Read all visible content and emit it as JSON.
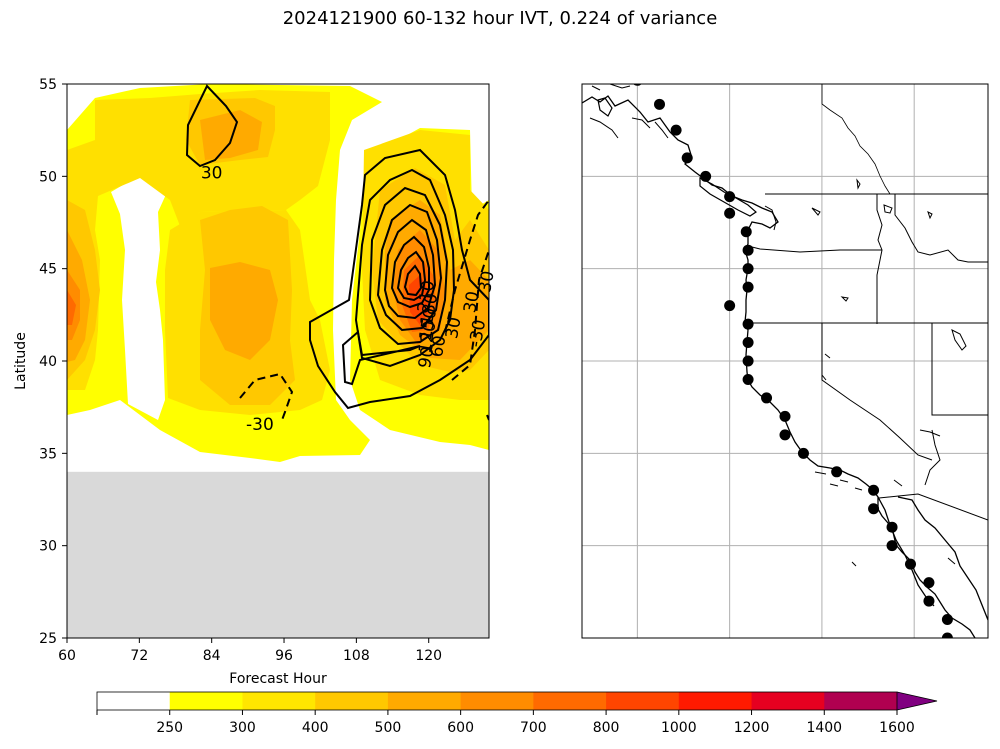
{
  "title": "2024121900 60-132 hour IVT, 0.224 of variance",
  "chart_data": [
    {
      "type": "heatmap",
      "name": "ivt-hovmoller",
      "xlabel": "Forecast Hour",
      "ylabel": "Latitude",
      "xlim": [
        60,
        130
      ],
      "ylim": [
        25,
        55
      ],
      "xticks": [
        "60",
        "72",
        "84",
        "96",
        "108",
        "120"
      ],
      "yticks": [
        "25",
        "30",
        "35",
        "40",
        "45",
        "50",
        "55"
      ],
      "missing_region": {
        "lat_below": 34,
        "color": "#d9d9d9"
      },
      "contour_labels": [
        {
          "text": "30",
          "x": 84,
          "y": 50.2
        },
        {
          "text": "-30",
          "x": 92,
          "y": 36.6
        },
        {
          "text": "210",
          "x": 119.5,
          "y": 43.5
        },
        {
          "text": "180",
          "x": 120,
          "y": 42.8
        },
        {
          "text": "150",
          "x": 119.8,
          "y": 42.0
        },
        {
          "text": "120",
          "x": 119.7,
          "y": 41.3
        },
        {
          "text": "90",
          "x": 119.5,
          "y": 40.2
        },
        {
          "text": "60",
          "x": 121.5,
          "y": 40.8
        },
        {
          "text": "30",
          "x": 124,
          "y": 41.8
        },
        {
          "text": "30",
          "x": 127,
          "y": 43.2
        },
        {
          "text": "-30",
          "x": 128,
          "y": 41.5
        },
        {
          "text": "30",
          "x": 129.5,
          "y": 44.3
        }
      ]
    },
    {
      "type": "scatter",
      "name": "coastal-points-map",
      "description": "West coast map with coastal sample points",
      "lon_gridlines": [
        -130,
        -125,
        -120,
        -115
      ],
      "lat_gridlines": [
        25,
        30,
        35,
        40,
        45,
        50
      ],
      "points": [
        {
          "lon": -130.0,
          "lat": 55.2
        },
        {
          "lon": -128.8,
          "lat": 53.9
        },
        {
          "lon": -127.9,
          "lat": 52.5
        },
        {
          "lon": -127.3,
          "lat": 51.0
        },
        {
          "lon": -126.3,
          "lat": 50.0
        },
        {
          "lon": -125.0,
          "lat": 48.9
        },
        {
          "lon": -125.0,
          "lat": 48.0
        },
        {
          "lon": -124.1,
          "lat": 47.0
        },
        {
          "lon": -124.0,
          "lat": 46.0
        },
        {
          "lon": -124.0,
          "lat": 45.0
        },
        {
          "lon": -124.0,
          "lat": 44.0
        },
        {
          "lon": -125.0,
          "lat": 43.0
        },
        {
          "lon": -124.0,
          "lat": 42.0
        },
        {
          "lon": -124.0,
          "lat": 41.0
        },
        {
          "lon": -124.0,
          "lat": 40.0
        },
        {
          "lon": -124.0,
          "lat": 39.0
        },
        {
          "lon": -123.0,
          "lat": 38.0
        },
        {
          "lon": -122.0,
          "lat": 37.0
        },
        {
          "lon": -122.0,
          "lat": 36.0
        },
        {
          "lon": -121.0,
          "lat": 35.0
        },
        {
          "lon": -119.2,
          "lat": 34.0
        },
        {
          "lon": -117.2,
          "lat": 33.0
        },
        {
          "lon": -117.2,
          "lat": 32.0
        },
        {
          "lon": -116.2,
          "lat": 31.0
        },
        {
          "lon": -116.2,
          "lat": 30.0
        },
        {
          "lon": -115.2,
          "lat": 29.0
        },
        {
          "lon": -114.2,
          "lat": 28.0
        },
        {
          "lon": -114.2,
          "lat": 27.0
        },
        {
          "lon": -113.2,
          "lat": 26.0
        },
        {
          "lon": -113.2,
          "lat": 25.0
        }
      ]
    },
    {
      "type": "colorbar",
      "name": "ivt-colorbar",
      "boundaries": [
        0,
        250,
        300,
        400,
        500,
        600,
        700,
        800,
        1000,
        1200,
        1400,
        1600
      ],
      "tick_labels": [
        "250",
        "300",
        "400",
        "500",
        "600",
        "700",
        "800",
        "1000",
        "1200",
        "1400",
        "1600"
      ],
      "colors": [
        "#ffffff",
        "#ffff00",
        "#ffe600",
        "#ffc800",
        "#ffaa00",
        "#ff8c00",
        "#ff6a00",
        "#ff4500",
        "#ff1a00",
        "#e60020",
        "#b00050",
        "#800080",
        "#5a0099"
      ]
    }
  ]
}
